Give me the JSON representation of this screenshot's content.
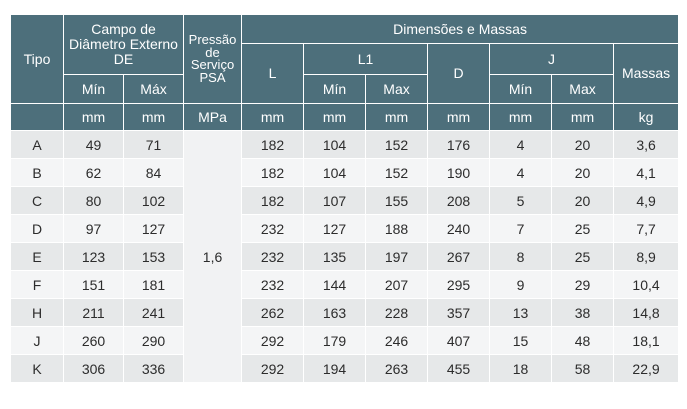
{
  "header": {
    "tipo": "Tipo",
    "campo": "Campo de Diâmetro Externo DE",
    "pressao": "Pressão de Serviço PSA",
    "dimensoes": "Dimensões e Massas",
    "l": "L",
    "l1": "L1",
    "d": "D",
    "j": "J",
    "massas": "Massas",
    "min_de": "Mín",
    "max_de": "Máx",
    "min_l1": "Mín",
    "max_l1": "Max",
    "min_j": "Mín",
    "max_j": "Max"
  },
  "units": {
    "de_min": "mm",
    "de_max": "mm",
    "psa": "MPa",
    "l": "mm",
    "l1_min": "mm",
    "l1_max": "mm",
    "d": "mm",
    "j_min": "mm",
    "j_max": "mm",
    "massas": "kg"
  },
  "pressao_value": "1,6",
  "rows": [
    {
      "tipo": "A",
      "de_min": "49",
      "de_max": "71",
      "l": "182",
      "l1_min": "104",
      "l1_max": "152",
      "d": "176",
      "j_min": "4",
      "j_max": "20",
      "massa": "3,6"
    },
    {
      "tipo": "B",
      "de_min": "62",
      "de_max": "84",
      "l": "182",
      "l1_min": "104",
      "l1_max": "152",
      "d": "190",
      "j_min": "4",
      "j_max": "20",
      "massa": "4,1"
    },
    {
      "tipo": "C",
      "de_min": "80",
      "de_max": "102",
      "l": "182",
      "l1_min": "107",
      "l1_max": "155",
      "d": "208",
      "j_min": "5",
      "j_max": "20",
      "massa": "4,9"
    },
    {
      "tipo": "D",
      "de_min": "97",
      "de_max": "127",
      "l": "232",
      "l1_min": "127",
      "l1_max": "188",
      "d": "240",
      "j_min": "7",
      "j_max": "25",
      "massa": "7,7"
    },
    {
      "tipo": "E",
      "de_min": "123",
      "de_max": "153",
      "l": "232",
      "l1_min": "135",
      "l1_max": "197",
      "d": "267",
      "j_min": "8",
      "j_max": "25",
      "massa": "8,9"
    },
    {
      "tipo": "F",
      "de_min": "151",
      "de_max": "181",
      "l": "232",
      "l1_min": "144",
      "l1_max": "207",
      "d": "295",
      "j_min": "9",
      "j_max": "29",
      "massa": "10,4"
    },
    {
      "tipo": "H",
      "de_min": "211",
      "de_max": "241",
      "l": "262",
      "l1_min": "163",
      "l1_max": "228",
      "d": "357",
      "j_min": "13",
      "j_max": "38",
      "massa": "14,8"
    },
    {
      "tipo": "J",
      "de_min": "260",
      "de_max": "290",
      "l": "292",
      "l1_min": "179",
      "l1_max": "246",
      "d": "407",
      "j_min": "15",
      "j_max": "48",
      "massa": "18,1"
    },
    {
      "tipo": "K",
      "de_min": "306",
      "de_max": "336",
      "l": "292",
      "l1_min": "194",
      "l1_max": "263",
      "d": "455",
      "j_min": "18",
      "j_max": "58",
      "massa": "22,9"
    }
  ]
}
